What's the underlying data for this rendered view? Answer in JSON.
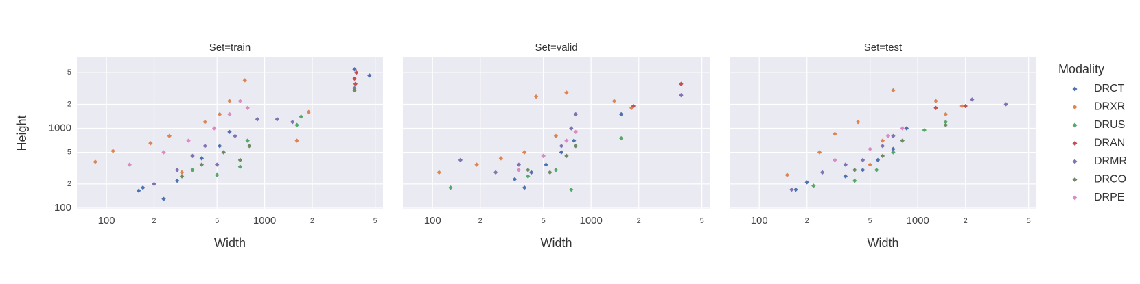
{
  "chart_data": [
    {
      "type": "scatter",
      "title": "Set=train",
      "xlabel": "Width",
      "ylabel": "Height",
      "legend_title": "Modality",
      "log_x": true,
      "log_y": true,
      "grid": true,
      "xlim": [
        65,
        5600
      ],
      "ylim": [
        96,
        7900
      ],
      "xticks": [
        100,
        {
          "value": 200,
          "label": "2"
        },
        {
          "value": 500,
          "label": "5"
        },
        1000,
        {
          "value": 2000,
          "label": "2"
        },
        {
          "value": 5000,
          "label": "5"
        }
      ],
      "yticks": [
        100,
        {
          "value": 200,
          "label": "2"
        },
        {
          "value": 500,
          "label": "5"
        },
        1000,
        {
          "value": 2000,
          "label": "2"
        },
        {
          "value": 5000,
          "label": "5"
        }
      ],
      "series": [
        {
          "name": "DRCT",
          "color": "#4c72b0",
          "x": [
            160,
            170,
            230,
            280,
            350,
            400,
            520,
            600,
            3700,
            4600
          ],
          "values": [
            165,
            180,
            130,
            220,
            300,
            420,
            600,
            900,
            5500,
            4600
          ]
        },
        {
          "name": "DRXR",
          "color": "#dd8452",
          "x": [
            85,
            110,
            190,
            250,
            300,
            420,
            520,
            600,
            750,
            1600,
            1900
          ],
          "values": [
            380,
            520,
            650,
            800,
            280,
            1200,
            1500,
            2200,
            4000,
            700,
            1600
          ]
        },
        {
          "name": "DRUS",
          "color": "#55a868",
          "x": [
            350,
            500,
            700,
            780,
            1600,
            1700
          ],
          "values": [
            300,
            260,
            330,
            700,
            1100,
            1400
          ]
        },
        {
          "name": "DRAN",
          "color": "#c44e52",
          "x": [
            3700,
            3750,
            3800
          ],
          "values": [
            4200,
            3600,
            5000
          ]
        },
        {
          "name": "DRMR",
          "color": "#8172b3",
          "x": [
            200,
            280,
            350,
            420,
            500,
            650,
            900,
            1200,
            1500,
            3700
          ],
          "values": [
            200,
            300,
            450,
            600,
            350,
            800,
            1300,
            1300,
            1200,
            3200
          ]
        },
        {
          "name": "DRCO",
          "color": "#6f8b64",
          "x": [
            300,
            400,
            550,
            700,
            800,
            3700
          ],
          "values": [
            250,
            350,
            500,
            400,
            600,
            3000
          ]
        },
        {
          "name": "DRPE",
          "color": "#da8bc3",
          "x": [
            140,
            230,
            330,
            480,
            600,
            700,
            780
          ],
          "values": [
            350,
            500,
            700,
            1000,
            1500,
            2200,
            1800
          ]
        }
      ]
    },
    {
      "type": "scatter",
      "title": "Set=valid",
      "xlabel": "Width",
      "xlim": [
        65,
        5600
      ],
      "xticks": [
        100,
        {
          "value": 200,
          "label": "2"
        },
        {
          "value": 500,
          "label": "5"
        },
        1000,
        {
          "value": 2000,
          "label": "2"
        },
        {
          "value": 5000,
          "label": "5"
        }
      ],
      "series": [
        {
          "color": "#4c72b0",
          "x": [
            330,
            380,
            420,
            520,
            650,
            780,
            1550
          ],
          "values": [
            230,
            180,
            280,
            350,
            500,
            700,
            1500
          ]
        },
        {
          "color": "#dd8452",
          "x": [
            110,
            190,
            270,
            380,
            450,
            600,
            700,
            1400,
            1800
          ],
          "values": [
            280,
            350,
            420,
            500,
            2500,
            800,
            2800,
            2200,
            1800
          ]
        },
        {
          "color": "#55a868",
          "x": [
            130,
            400,
            600,
            750,
            1550
          ],
          "values": [
            180,
            250,
            300,
            170,
            750
          ]
        },
        {
          "color": "#c44e52",
          "x": [
            1850,
            3700
          ],
          "values": [
            1900,
            3600
          ]
        },
        {
          "color": "#8172b3",
          "x": [
            150,
            250,
            350,
            500,
            650,
            750,
            800,
            3700
          ],
          "values": [
            400,
            280,
            350,
            450,
            600,
            1000,
            1500,
            2600
          ]
        },
        {
          "color": "#6f8b64",
          "x": [
            400,
            550,
            700,
            800
          ],
          "values": [
            300,
            280,
            450,
            600
          ]
        },
        {
          "color": "#da8bc3",
          "x": [
            350,
            500,
            700,
            800
          ],
          "values": [
            300,
            450,
            700,
            900
          ]
        }
      ]
    },
    {
      "type": "scatter",
      "title": "Set=test",
      "xlabel": "Width",
      "xlim": [
        65,
        5600
      ],
      "xticks": [
        100,
        {
          "value": 200,
          "label": "2"
        },
        {
          "value": 500,
          "label": "5"
        },
        1000,
        {
          "value": 2000,
          "label": "2"
        },
        {
          "value": 5000,
          "label": "5"
        }
      ],
      "series": [
        {
          "color": "#4c72b0",
          "x": [
            170,
            200,
            350,
            450,
            560,
            700,
            850
          ],
          "values": [
            170,
            210,
            250,
            300,
            400,
            550,
            1000
          ]
        },
        {
          "color": "#dd8452",
          "x": [
            150,
            240,
            300,
            420,
            500,
            600,
            700,
            1300,
            1500,
            1900
          ],
          "values": [
            260,
            500,
            850,
            1200,
            350,
            700,
            3000,
            2200,
            1500,
            1900
          ]
        },
        {
          "color": "#55a868",
          "x": [
            220,
            400,
            550,
            700,
            1100,
            1500
          ],
          "values": [
            190,
            220,
            300,
            500,
            950,
            1200
          ]
        },
        {
          "color": "#c44e52",
          "x": [
            1300,
            2000
          ],
          "values": [
            1800,
            1900
          ]
        },
        {
          "color": "#8172b3",
          "x": [
            160,
            250,
            350,
            450,
            600,
            700,
            2200,
            3600
          ],
          "values": [
            170,
            280,
            350,
            400,
            600,
            800,
            2300,
            2000
          ]
        },
        {
          "color": "#6f8b64",
          "x": [
            400,
            600,
            800,
            1500
          ],
          "values": [
            300,
            450,
            700,
            1100
          ]
        },
        {
          "color": "#da8bc3",
          "x": [
            300,
            500,
            650,
            800
          ],
          "values": [
            400,
            550,
            800,
            1000
          ]
        }
      ]
    }
  ]
}
